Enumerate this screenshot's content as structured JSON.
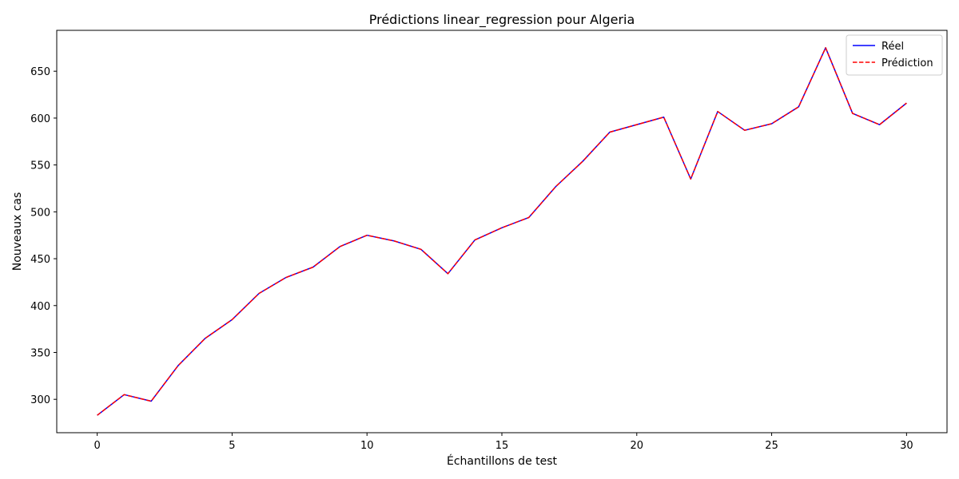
{
  "chart_data": {
    "type": "line",
    "title": "Prédictions linear_regression pour Algeria",
    "xlabel": "Échantillons de test",
    "ylabel": "Nouveaux cas",
    "x": [
      0,
      1,
      2,
      3,
      4,
      5,
      6,
      7,
      8,
      9,
      10,
      11,
      12,
      13,
      14,
      15,
      16,
      17,
      18,
      19,
      20,
      21,
      22,
      23,
      24,
      25,
      26,
      27,
      28,
      29,
      30
    ],
    "series": [
      {
        "name": "Réel",
        "color": "#0000ff",
        "style": "solid",
        "values": [
          283,
          305,
          298,
          336,
          365,
          385,
          413,
          430,
          441,
          463,
          475,
          469,
          460,
          434,
          470,
          483,
          494,
          527,
          554,
          585,
          593,
          601,
          535,
          607,
          587,
          594,
          612,
          675,
          605,
          593,
          616
        ]
      },
      {
        "name": "Prédiction",
        "color": "#ff0000",
        "style": "dashed",
        "values": [
          283,
          305,
          298,
          336,
          365,
          385,
          413,
          430,
          441,
          463,
          475,
          469,
          460,
          434,
          470,
          483,
          494,
          527,
          554,
          585,
          593,
          601,
          535,
          607,
          587,
          594,
          612,
          675,
          605,
          593,
          616
        ]
      }
    ],
    "xlim": [
      -1.5,
      31.5
    ],
    "ylim": [
      264.4,
      693.6
    ],
    "xticks": [
      0,
      5,
      10,
      15,
      20,
      25,
      30
    ],
    "yticks": [
      300,
      350,
      400,
      450,
      500,
      550,
      600,
      650
    ],
    "grid": false,
    "legend_position": "top-right"
  }
}
